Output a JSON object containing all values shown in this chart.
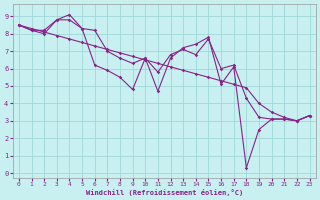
{
  "xlabel": "Windchill (Refroidissement éolien,°C)",
  "xlim": [
    -0.5,
    23.5
  ],
  "ylim": [
    -0.3,
    9.7
  ],
  "xticks": [
    0,
    1,
    2,
    3,
    4,
    5,
    6,
    7,
    8,
    9,
    10,
    11,
    12,
    13,
    14,
    15,
    16,
    17,
    18,
    19,
    20,
    21,
    22,
    23
  ],
  "yticks": [
    0,
    1,
    2,
    3,
    4,
    5,
    6,
    7,
    8,
    9
  ],
  "background_color": "#c8f0f0",
  "grid_color": "#a0d8d8",
  "line_color": "#882288",
  "lines": [
    {
      "x": [
        0,
        1,
        2,
        3,
        4,
        5,
        6,
        7,
        8,
        9,
        10,
        11,
        12,
        13,
        14,
        15,
        16,
        17,
        18,
        19,
        20,
        21,
        22,
        23
      ],
      "y": [
        8.5,
        8.3,
        8.1,
        7.9,
        7.7,
        7.5,
        7.3,
        7.1,
        6.9,
        6.7,
        6.5,
        6.3,
        6.1,
        5.9,
        5.7,
        5.5,
        5.3,
        5.1,
        4.9,
        4.0,
        3.5,
        3.2,
        3.0,
        3.3
      ]
    },
    {
      "x": [
        0,
        1,
        2,
        3,
        4,
        5,
        6,
        7,
        8,
        9,
        10,
        11,
        12,
        13,
        14,
        15,
        16,
        17,
        18,
        19,
        20,
        21,
        22,
        23
      ],
      "y": [
        8.5,
        8.2,
        8.0,
        8.8,
        8.8,
        8.3,
        8.2,
        7.0,
        6.6,
        6.3,
        6.6,
        5.8,
        6.8,
        7.1,
        6.8,
        7.7,
        6.0,
        6.2,
        4.3,
        3.2,
        3.1,
        3.1,
        3.0,
        3.3
      ]
    },
    {
      "x": [
        0,
        1,
        2,
        3,
        4,
        5,
        6,
        7,
        8,
        9,
        10,
        11,
        12,
        13,
        14,
        15,
        16,
        17,
        18,
        19,
        20,
        21,
        22,
        23
      ],
      "y": [
        8.5,
        8.2,
        8.2,
        8.8,
        9.1,
        8.3,
        6.2,
        5.9,
        5.5,
        4.8,
        6.6,
        4.7,
        6.6,
        7.2,
        7.4,
        7.8,
        5.1,
        6.1,
        0.3,
        2.5,
        3.1,
        3.1,
        3.0,
        3.3
      ]
    }
  ]
}
